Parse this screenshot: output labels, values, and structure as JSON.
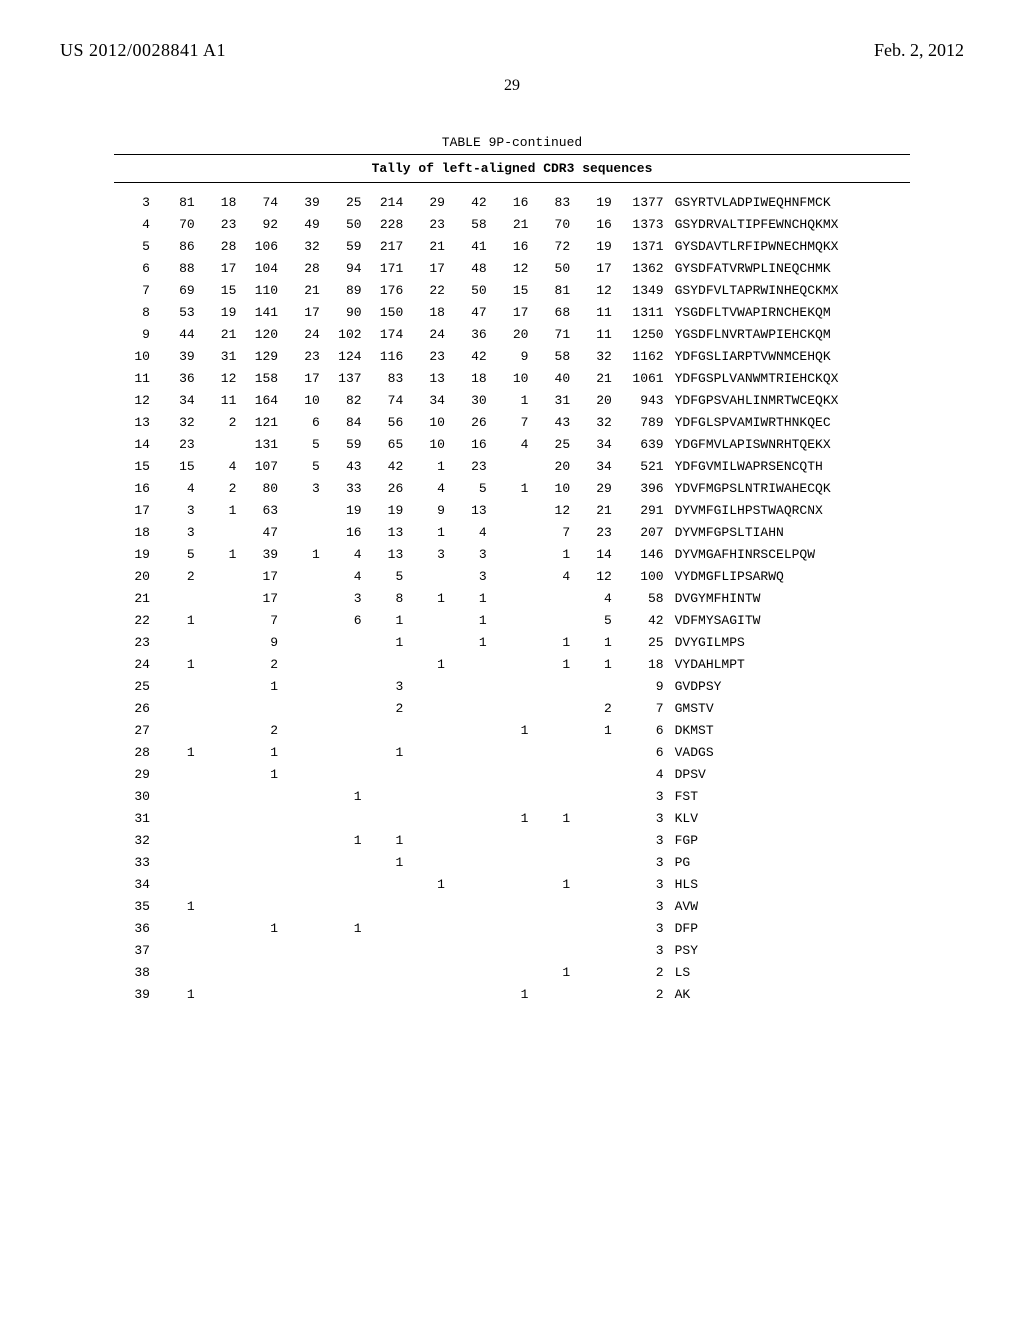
{
  "header": {
    "patent_id": "US 2012/0028841 A1",
    "date": "Feb. 2, 2012"
  },
  "page_number": "29",
  "table": {
    "caption": "TABLE 9P-continued",
    "subtitle": "Tally of left-aligned CDR3 sequences",
    "rows": [
      {
        "idx": "3",
        "c": [
          "81",
          "18",
          "74",
          "39",
          "25",
          "214",
          "29",
          "42",
          "16",
          "83",
          "19",
          "1377"
        ],
        "seq": "GSYRTVLADPIWEQHNFMCK"
      },
      {
        "idx": "4",
        "c": [
          "70",
          "23",
          "92",
          "49",
          "50",
          "228",
          "23",
          "58",
          "21",
          "70",
          "16",
          "1373"
        ],
        "seq": "GSYDRVALTIPFEWNCHQKMX"
      },
      {
        "idx": "5",
        "c": [
          "86",
          "28",
          "106",
          "32",
          "59",
          "217",
          "21",
          "41",
          "16",
          "72",
          "19",
          "1371"
        ],
        "seq": "GYSDAVTLRFIPWNECHMQKX"
      },
      {
        "idx": "6",
        "c": [
          "88",
          "17",
          "104",
          "28",
          "94",
          "171",
          "17",
          "48",
          "12",
          "50",
          "17",
          "1362"
        ],
        "seq": "GYSDFATVRWPLINEQCHMK"
      },
      {
        "idx": "7",
        "c": [
          "69",
          "15",
          "110",
          "21",
          "89",
          "176",
          "22",
          "50",
          "15",
          "81",
          "12",
          "1349"
        ],
        "seq": "GSYDFVLTAPRWINHEQCKMX"
      },
      {
        "idx": "8",
        "c": [
          "53",
          "19",
          "141",
          "17",
          "90",
          "150",
          "18",
          "47",
          "17",
          "68",
          "11",
          "1311"
        ],
        "seq": "YSGDFLTVWAPIRNCHEKQM"
      },
      {
        "idx": "9",
        "c": [
          "44",
          "21",
          "120",
          "24",
          "102",
          "174",
          "24",
          "36",
          "20",
          "71",
          "11",
          "1250"
        ],
        "seq": "YGSDFLNVRTAWPIEHCKQM"
      },
      {
        "idx": "10",
        "c": [
          "39",
          "31",
          "129",
          "23",
          "124",
          "116",
          "23",
          "42",
          "9",
          "58",
          "32",
          "1162"
        ],
        "seq": "YDFGSLIARPTVWNMCEHQK"
      },
      {
        "idx": "11",
        "c": [
          "36",
          "12",
          "158",
          "17",
          "137",
          "83",
          "13",
          "18",
          "10",
          "40",
          "21",
          "1061"
        ],
        "seq": "YDFGSPLVANWMTRIEHCKQX"
      },
      {
        "idx": "12",
        "c": [
          "34",
          "11",
          "164",
          "10",
          "82",
          "74",
          "34",
          "30",
          "1",
          "31",
          "20",
          "943"
        ],
        "seq": "YDFGPSVAHLINMRTWCEQKX"
      },
      {
        "idx": "13",
        "c": [
          "32",
          "2",
          "121",
          "6",
          "84",
          "56",
          "10",
          "26",
          "7",
          "43",
          "32",
          "789"
        ],
        "seq": "YDFGLSPVAMIWRTHNKQEC"
      },
      {
        "idx": "14",
        "c": [
          "23",
          "",
          "131",
          "5",
          "59",
          "65",
          "10",
          "16",
          "4",
          "25",
          "34",
          "639"
        ],
        "seq": "YDGFMVLAPISWNRHTQEKX"
      },
      {
        "idx": "15",
        "c": [
          "15",
          "4",
          "107",
          "5",
          "43",
          "42",
          "1",
          "23",
          "",
          "20",
          "34",
          "521"
        ],
        "seq": "YDFGVMILWAPRSENCQTH"
      },
      {
        "idx": "16",
        "c": [
          "4",
          "2",
          "80",
          "3",
          "33",
          "26",
          "4",
          "5",
          "1",
          "10",
          "29",
          "396"
        ],
        "seq": "YDVFMGPSLNTRIWAHECQK"
      },
      {
        "idx": "17",
        "c": [
          "3",
          "1",
          "63",
          "",
          "19",
          "19",
          "9",
          "13",
          "",
          "12",
          "21",
          "291"
        ],
        "seq": "DYVMFGILHPSTWAQRCNX"
      },
      {
        "idx": "18",
        "c": [
          "3",
          "",
          "47",
          "",
          "16",
          "13",
          "1",
          "4",
          "",
          "7",
          "23",
          "207"
        ],
        "seq": "DYVMFGPSLTIAHN"
      },
      {
        "idx": "19",
        "c": [
          "5",
          "1",
          "39",
          "1",
          "4",
          "13",
          "3",
          "3",
          "",
          "1",
          "14",
          "146"
        ],
        "seq": "DYVMGAFHINRSCELPQW"
      },
      {
        "idx": "20",
        "c": [
          "2",
          "",
          "17",
          "",
          "4",
          "5",
          "",
          "3",
          "",
          "4",
          "12",
          "100"
        ],
        "seq": "VYDMGFLIPSARWQ"
      },
      {
        "idx": "21",
        "c": [
          "",
          "",
          "17",
          "",
          "3",
          "8",
          "1",
          "1",
          "",
          "",
          "4",
          "58"
        ],
        "seq": "DVGYMFHINTW"
      },
      {
        "idx": "22",
        "c": [
          "1",
          "",
          "7",
          "",
          "6",
          "1",
          "",
          "1",
          "",
          "",
          "5",
          "42"
        ],
        "seq": "VDFMYSAGITW"
      },
      {
        "idx": "23",
        "c": [
          "",
          "",
          "9",
          "",
          "",
          "1",
          "",
          "1",
          "",
          "1",
          "1",
          "25"
        ],
        "seq": "DVYGILMPS"
      },
      {
        "idx": "24",
        "c": [
          "1",
          "",
          "2",
          "",
          "",
          "",
          "1",
          "",
          "",
          "1",
          "1",
          "18"
        ],
        "seq": "VYDAHLMPT"
      },
      {
        "idx": "25",
        "c": [
          "",
          "",
          "1",
          "",
          "",
          "3",
          "",
          "",
          "",
          "",
          "",
          "9"
        ],
        "seq": "GVDPSY"
      },
      {
        "idx": "26",
        "c": [
          "",
          "",
          "",
          "",
          "",
          "2",
          "",
          "",
          "",
          "",
          "2",
          "7"
        ],
        "seq": "GMSTV"
      },
      {
        "idx": "27",
        "c": [
          "",
          "",
          "2",
          "",
          "",
          "",
          "",
          "",
          "1",
          "",
          "1",
          "6"
        ],
        "seq": "DKMST"
      },
      {
        "idx": "28",
        "c": [
          "1",
          "",
          "1",
          "",
          "",
          "1",
          "",
          "",
          "",
          "",
          "",
          "6"
        ],
        "seq": "VADGS"
      },
      {
        "idx": "29",
        "c": [
          "",
          "",
          "1",
          "",
          "",
          "",
          "",
          "",
          "",
          "",
          "",
          "4"
        ],
        "seq": "DPSV"
      },
      {
        "idx": "30",
        "c": [
          "",
          "",
          "",
          "",
          "1",
          "",
          "",
          "",
          "",
          "",
          "",
          "3"
        ],
        "seq": "FST"
      },
      {
        "idx": "31",
        "c": [
          "",
          "",
          "",
          "",
          "",
          "",
          "",
          "",
          "1",
          "1",
          "",
          "3"
        ],
        "seq": "KLV"
      },
      {
        "idx": "32",
        "c": [
          "",
          "",
          "",
          "",
          "1",
          "1",
          "",
          "",
          "",
          "",
          "",
          "3"
        ],
        "seq": "FGP"
      },
      {
        "idx": "33",
        "c": [
          "",
          "",
          "",
          "",
          "",
          "1",
          "",
          "",
          "",
          "",
          "",
          "3"
        ],
        "seq": "PG"
      },
      {
        "idx": "34",
        "c": [
          "",
          "",
          "",
          "",
          "",
          "",
          "1",
          "",
          "",
          "1",
          "",
          "3"
        ],
        "seq": "HLS"
      },
      {
        "idx": "35",
        "c": [
          "1",
          "",
          "",
          "",
          "",
          "",
          "",
          "",
          "",
          "",
          "",
          "3"
        ],
        "seq": "AVW"
      },
      {
        "idx": "36",
        "c": [
          "",
          "",
          "1",
          "",
          "1",
          "",
          "",
          "",
          "",
          "",
          "",
          "3"
        ],
        "seq": "DFP"
      },
      {
        "idx": "37",
        "c": [
          "",
          "",
          "",
          "",
          "",
          "",
          "",
          "",
          "",
          "",
          "",
          "3"
        ],
        "seq": "PSY"
      },
      {
        "idx": "38",
        "c": [
          "",
          "",
          "",
          "",
          "",
          "",
          "",
          "",
          "",
          "1",
          "",
          "2"
        ],
        "seq": "LS"
      },
      {
        "idx": "39",
        "c": [
          "1",
          "",
          "",
          "",
          "",
          "",
          "",
          "",
          "1",
          "",
          "",
          "2"
        ],
        "seq": "AK"
      }
    ]
  }
}
